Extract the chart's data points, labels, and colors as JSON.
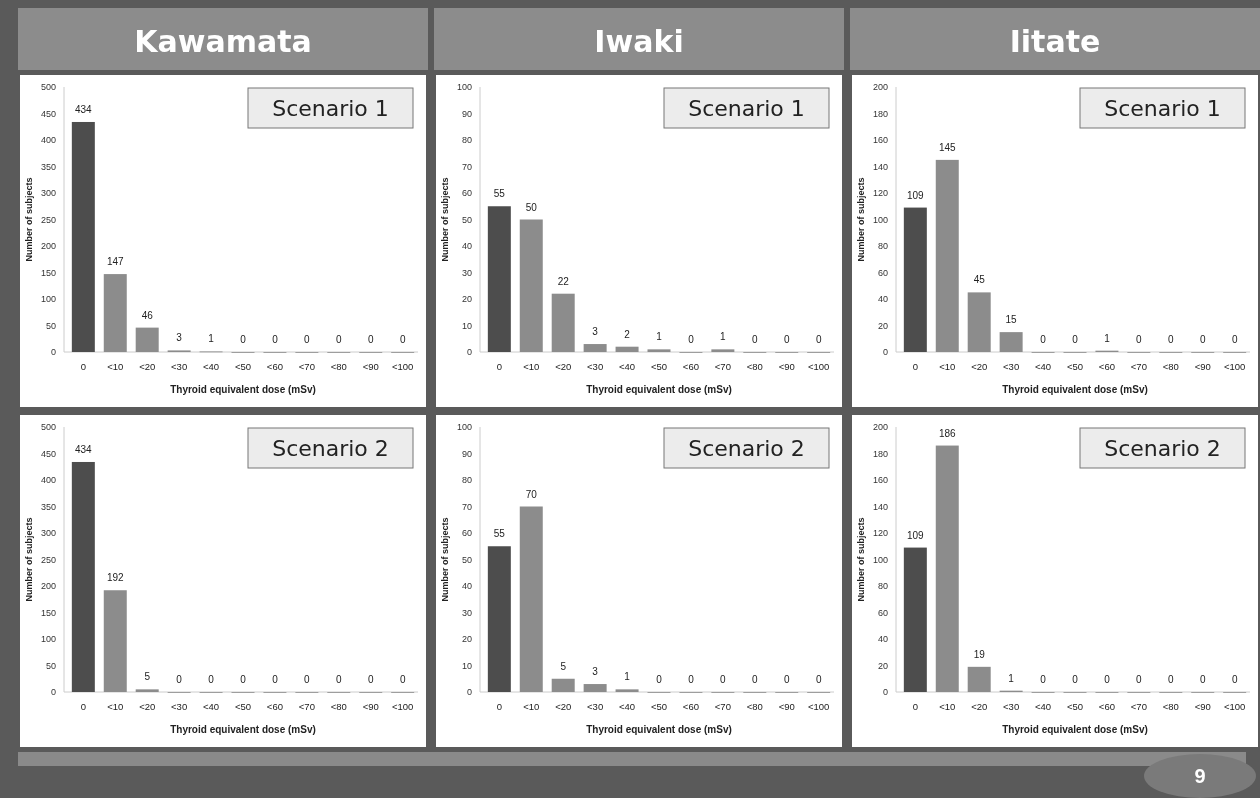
{
  "chart_data": [
    {
      "type": "bar",
      "title": "Kawamata",
      "subtitle": "Scenario 1",
      "xlabel": "Thyroid equivalent dose (mSv)",
      "ylabel": "Number of subjects",
      "categories": [
        "0",
        "<10",
        "<20",
        "<30",
        "<40",
        "<50",
        "<60",
        "<70",
        "<80",
        "<90",
        "<100"
      ],
      "values": [
        434,
        147,
        46,
        3,
        1,
        0,
        0,
        0,
        0,
        0,
        0
      ],
      "colors": [
        "#4d4d4d",
        "#8c8c8c",
        "#8c8c8c",
        "#8c8c8c",
        "#8c8c8c",
        "#8c8c8c",
        "#8c8c8c",
        "#8c8c8c",
        "#8c8c8c",
        "#8c8c8c",
        "#8c8c8c"
      ],
      "ylim": [
        0,
        500
      ],
      "yticks": [
        0,
        50,
        100,
        150,
        200,
        250,
        300,
        350,
        400,
        450,
        500
      ],
      "data_labels": true,
      "grid": false
    },
    {
      "type": "bar",
      "title": "Iwaki",
      "subtitle": "Scenario 1",
      "xlabel": "Thyroid equivalent dose (mSv)",
      "ylabel": "Number of subjects",
      "categories": [
        "0",
        "<10",
        "<20",
        "<30",
        "<40",
        "<50",
        "<60",
        "<70",
        "<80",
        "<90",
        "<100"
      ],
      "values": [
        55,
        50,
        22,
        3,
        2,
        1,
        0,
        1,
        0,
        0,
        0
      ],
      "colors": [
        "#4d4d4d",
        "#8c8c8c",
        "#8c8c8c",
        "#8c8c8c",
        "#8c8c8c",
        "#8c8c8c",
        "#8c8c8c",
        "#8c8c8c",
        "#8c8c8c",
        "#8c8c8c",
        "#8c8c8c"
      ],
      "ylim": [
        0,
        100
      ],
      "yticks": [
        0,
        10,
        20,
        30,
        40,
        50,
        60,
        70,
        80,
        90,
        100
      ],
      "data_labels": true,
      "grid": false
    },
    {
      "type": "bar",
      "title": "Iitate",
      "subtitle": "Scenario 1",
      "xlabel": "Thyroid equivalent dose (mSv)",
      "ylabel": "Number of subjects",
      "categories": [
        "0",
        "<10",
        "<20",
        "<30",
        "<40",
        "<50",
        "<60",
        "<70",
        "<80",
        "<90",
        "<100"
      ],
      "values": [
        109,
        145,
        45,
        15,
        0,
        0,
        1,
        0,
        0,
        0,
        0
      ],
      "colors": [
        "#4d4d4d",
        "#8c8c8c",
        "#8c8c8c",
        "#8c8c8c",
        "#8c8c8c",
        "#8c8c8c",
        "#8c8c8c",
        "#8c8c8c",
        "#8c8c8c",
        "#8c8c8c",
        "#8c8c8c"
      ],
      "ylim": [
        0,
        200
      ],
      "yticks": [
        0,
        20,
        40,
        60,
        80,
        100,
        120,
        140,
        160,
        180,
        200
      ],
      "data_labels": true,
      "grid": false
    },
    {
      "type": "bar",
      "subtitle": "Scenario 2",
      "xlabel": "Thyroid equivalent dose (mSv)",
      "ylabel": "Number of subjects",
      "categories": [
        "0",
        "<10",
        "<20",
        "<30",
        "<40",
        "<50",
        "<60",
        "<70",
        "<80",
        "<90",
        "<100"
      ],
      "values": [
        434,
        192,
        5,
        0,
        0,
        0,
        0,
        0,
        0,
        0,
        0
      ],
      "colors": [
        "#4d4d4d",
        "#8c8c8c",
        "#8c8c8c",
        "#8c8c8c",
        "#8c8c8c",
        "#8c8c8c",
        "#8c8c8c",
        "#8c8c8c",
        "#8c8c8c",
        "#8c8c8c",
        "#8c8c8c"
      ],
      "ylim": [
        0,
        500
      ],
      "yticks": [
        0,
        50,
        100,
        150,
        200,
        250,
        300,
        350,
        400,
        450,
        500
      ],
      "data_labels": true,
      "grid": false
    },
    {
      "type": "bar",
      "subtitle": "Scenario 2",
      "xlabel": "Thyroid equivalent dose (mSv)",
      "ylabel": "Number of subjects",
      "categories": [
        "0",
        "<10",
        "<20",
        "<30",
        "<40",
        "<50",
        "<60",
        "<70",
        "<80",
        "<90",
        "<100"
      ],
      "values": [
        55,
        70,
        5,
        3,
        1,
        0,
        0,
        0,
        0,
        0,
        0
      ],
      "colors": [
        "#4d4d4d",
        "#8c8c8c",
        "#8c8c8c",
        "#8c8c8c",
        "#8c8c8c",
        "#8c8c8c",
        "#8c8c8c",
        "#8c8c8c",
        "#8c8c8c",
        "#8c8c8c",
        "#8c8c8c"
      ],
      "ylim": [
        0,
        100
      ],
      "yticks": [
        0,
        10,
        20,
        30,
        40,
        50,
        60,
        70,
        80,
        90,
        100
      ],
      "data_labels": true,
      "grid": false
    },
    {
      "type": "bar",
      "subtitle": "Scenario 2",
      "xlabel": "Thyroid equivalent dose (mSv)",
      "ylabel": "Number of subjects",
      "categories": [
        "0",
        "<10",
        "<20",
        "<30",
        "<40",
        "<50",
        "<60",
        "<70",
        "<80",
        "<90",
        "<100"
      ],
      "values": [
        109,
        186,
        19,
        1,
        0,
        0,
        0,
        0,
        0,
        0,
        0
      ],
      "colors": [
        "#4d4d4d",
        "#8c8c8c",
        "#8c8c8c",
        "#8c8c8c",
        "#8c8c8c",
        "#8c8c8c",
        "#8c8c8c",
        "#8c8c8c",
        "#8c8c8c",
        "#8c8c8c",
        "#8c8c8c"
      ],
      "ylim": [
        0,
        200
      ],
      "yticks": [
        0,
        20,
        40,
        60,
        80,
        100,
        120,
        140,
        160,
        180,
        200
      ],
      "data_labels": true,
      "grid": false,
      "annotations": [
        "9"
      ]
    }
  ]
}
